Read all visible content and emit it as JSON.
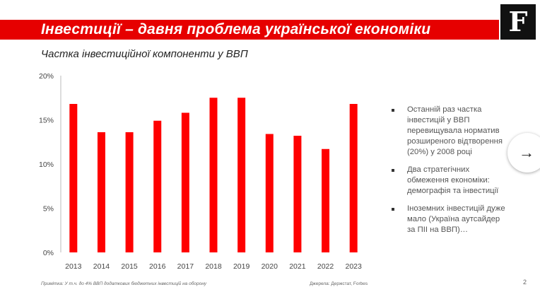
{
  "header": {
    "title": "Інвестиції – давня проблема української економіки",
    "logo_letter": "F"
  },
  "chart_data": {
    "type": "bar",
    "title": "Частка інвестиційної компоненти у ВВП",
    "categories": [
      "2013",
      "2014",
      "2015",
      "2016",
      "2017",
      "2018",
      "2019",
      "2020",
      "2021",
      "2022",
      "2023"
    ],
    "values": [
      16.8,
      13.6,
      13.6,
      14.9,
      15.8,
      17.5,
      17.5,
      13.4,
      13.2,
      11.7,
      16.8
    ],
    "y_ticks": [
      "0%",
      "5%",
      "10%",
      "15%",
      "20%"
    ],
    "ylim": [
      0,
      20
    ],
    "bar_color": "#ff0000",
    "grid": false
  },
  "bullets": [
    "Останній раз частка інвестицій у ВВП перевищувала норматив розширеного відтворення (20%) у 2008 році",
    "Два стратегічних обмеження економіки: демографія та інвестиції",
    "Іноземних інвестицій дуже мало (Україна аутсайдер за ПІІ на ВВП)…"
  ],
  "footer": {
    "note": "Примітка: У т.ч. до 4% ВВП додаткових бюджетних інвестицій на оборону",
    "source": "Джерела: Держстат, Forbes",
    "page": "2"
  },
  "controls": {
    "next_icon": "→"
  }
}
